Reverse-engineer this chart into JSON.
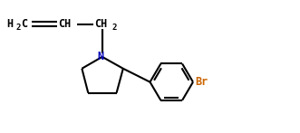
{
  "bg_color": "#ffffff",
  "line_color": "#000000",
  "bond_lw": 1.5,
  "text_color_black": "#000000",
  "text_color_br": "#cc6600",
  "text_color_n": "#0000bb",
  "font_size": 8.5,
  "sub_font_size": 6.5,
  "figsize": [
    3.31,
    1.47
  ],
  "dpi": 100,
  "xlim": [
    0,
    10
  ],
  "ylim": [
    0,
    4.5
  ]
}
